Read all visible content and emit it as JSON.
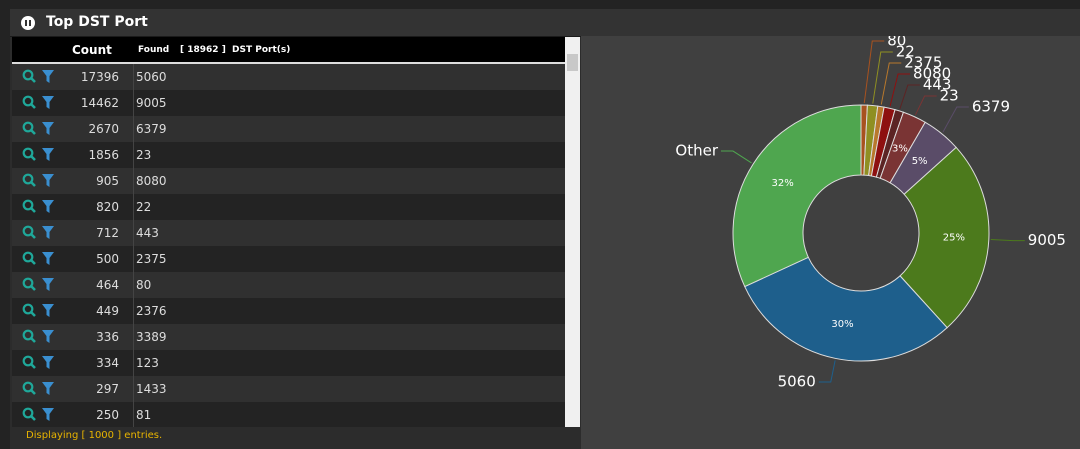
{
  "header": {
    "title": "Top DST Port"
  },
  "table": {
    "columns": {
      "count": "Count",
      "found": "Found",
      "found_total": "[ 18962 ]",
      "port": "DST Port(s)"
    },
    "rows": [
      [
        17396,
        5060
      ],
      [
        14462,
        9005
      ],
      [
        2670,
        6379
      ],
      [
        1856,
        23
      ],
      [
        905,
        8080
      ],
      [
        820,
        22
      ],
      [
        712,
        443
      ],
      [
        500,
        2375
      ],
      [
        464,
        80
      ],
      [
        449,
        2376
      ],
      [
        336,
        3389
      ],
      [
        334,
        123
      ],
      [
        297,
        1433
      ],
      [
        250,
        81
      ]
    ],
    "footer": "Displaying [ 1000 ] entries."
  },
  "chart_data": {
    "type": "donut",
    "categories": [
      "80",
      "22",
      "2375",
      "8080",
      "443",
      "23",
      "6379",
      "9005",
      "5060",
      "Other"
    ],
    "values": [
      0.8,
      1.3,
      0.8,
      1.4,
      1.1,
      3,
      5,
      25,
      30,
      32
    ],
    "value_labels": [
      null,
      null,
      null,
      null,
      null,
      "3%",
      "5%",
      "25%",
      "30%",
      "32%"
    ],
    "colors": [
      "#a8521f",
      "#8f8f22",
      "#b8782c",
      "#8e1010",
      "#5c2424",
      "#7a3434",
      "#5a4c68",
      "#4c7a1c",
      "#1e5f8c",
      "#4fa64f"
    ]
  }
}
